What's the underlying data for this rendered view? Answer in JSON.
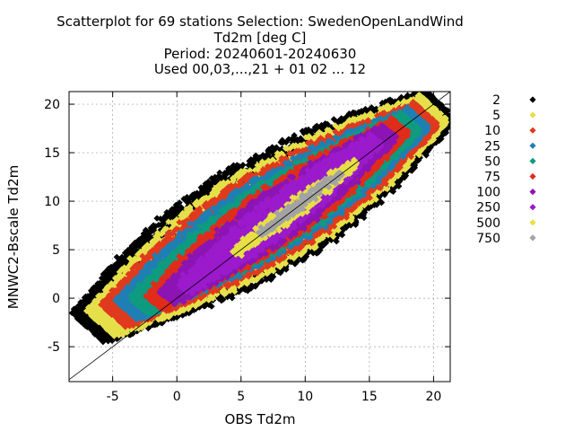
{
  "chart_data": {
    "type": "scatter",
    "title_lines": [
      "Scatterplot for   69 stations Selection: SwedenOpenLandWind",
      "Td2m [deg C]",
      "Period: 20240601-20240630",
      "Used 00,03,...,21 + 01 02 ... 12"
    ],
    "xlabel": "OBS Td2m",
    "ylabel": "MNWC2-Bscale Td2m",
    "xlim": [
      -8.4,
      21.3
    ],
    "ylim": [
      -8.6,
      21.3
    ],
    "xticks": [
      -5,
      0,
      5,
      10,
      15,
      20
    ],
    "yticks": [
      -5,
      0,
      5,
      10,
      15,
      20
    ],
    "grid": true,
    "diagonal": true,
    "legend_position": "right",
    "density_bins": [
      {
        "label": "2",
        "color": "#000000"
      },
      {
        "label": "5",
        "color": "#e5e04a"
      },
      {
        "label": "10",
        "color": "#e03a1e"
      },
      {
        "label": "25",
        "color": "#1f7fb4"
      },
      {
        "label": "50",
        "color": "#0e9b7f"
      },
      {
        "label": "75",
        "color": "#e02c1a"
      },
      {
        "label": "100",
        "color": "#8c14b4"
      },
      {
        "label": "250",
        "color": "#9b1acb"
      },
      {
        "label": "500",
        "color": "#e8df46"
      },
      {
        "label": "750",
        "color": "#a3a3a3"
      }
    ],
    "density_bands": [
      {
        "bin": 9,
        "from": [
          6.5,
          6.6
        ],
        "to": [
          12.8,
          12.9
        ],
        "width": 0.8
      },
      {
        "bin": 8,
        "from": [
          4.5,
          4.6
        ],
        "to": [
          14.0,
          14.1
        ],
        "width": 1.5
      },
      {
        "bin": 7,
        "from": [
          0.5,
          0.9
        ],
        "to": [
          15.6,
          16.4
        ],
        "width": 3.4
      },
      {
        "bin": 6,
        "from": [
          -0.8,
          0.0
        ],
        "to": [
          16.6,
          17.2
        ],
        "width": 4.6
      },
      {
        "bin": 5,
        "from": [
          -1.8,
          -0.5
        ],
        "to": [
          17.5,
          17.8
        ],
        "width": 5.4
      },
      {
        "bin": 4,
        "from": [
          -3.0,
          -0.8
        ],
        "to": [
          18.3,
          18.2
        ],
        "width": 6.2
      },
      {
        "bin": 3,
        "from": [
          -4.0,
          -1.2
        ],
        "to": [
          18.9,
          18.6
        ],
        "width": 7.2
      },
      {
        "bin": 2,
        "from": [
          -5.0,
          -1.8
        ],
        "to": [
          19.5,
          19.0
        ],
        "width": 8.4
      },
      {
        "bin": 1,
        "from": [
          -6.0,
          -2.6
        ],
        "to": [
          20.1,
          19.6
        ],
        "width": 9.6
      },
      {
        "bin": 0,
        "from": [
          -7.0,
          -3.0
        ],
        "to": [
          20.6,
          20.0
        ],
        "width": 11.0
      }
    ]
  }
}
